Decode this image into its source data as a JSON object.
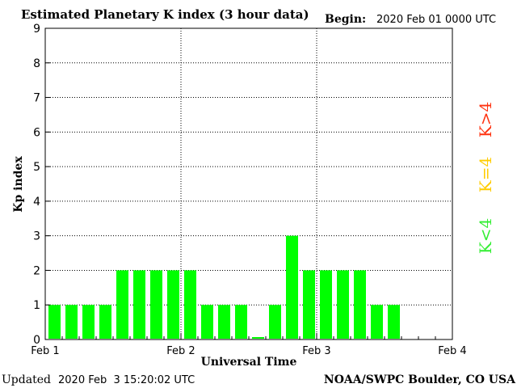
{
  "header": {
    "title": "Estimated Planetary K index (3 hour data)",
    "begin_label": "Begin:",
    "begin_value": "2020 Feb 01 0000 UTC"
  },
  "footer": {
    "updated_label": "Updated",
    "updated_value": "2020 Feb  3 15:20:02 UTC",
    "source": "NOAA/SWPC Boulder, CO USA"
  },
  "legend": {
    "items": [
      {
        "label": "K<4",
        "color": "#33ee33"
      },
      {
        "label": "K=4",
        "color": "#ffcc00"
      },
      {
        "label": "K>4",
        "color": "#ff3311"
      }
    ]
  },
  "chart_data": {
    "type": "bar",
    "title": "Estimated Planetary K index (3 hour data)",
    "xlabel": "Universal Time",
    "ylabel": "Kp index",
    "ylim": [
      0,
      9
    ],
    "yticks": [
      "0",
      "1",
      "2",
      "3",
      "4",
      "5",
      "6",
      "7",
      "8",
      "9"
    ],
    "xtick_labels": [
      "Feb 1",
      "Feb 2",
      "Feb 3",
      "Feb 4"
    ],
    "grid": true,
    "bar_color": "#00ff00",
    "values": [
      1,
      1,
      1,
      1,
      2,
      2,
      2,
      2,
      2,
      1,
      1,
      1,
      0.07,
      1,
      3,
      2,
      2,
      2,
      2,
      1,
      1
    ]
  }
}
